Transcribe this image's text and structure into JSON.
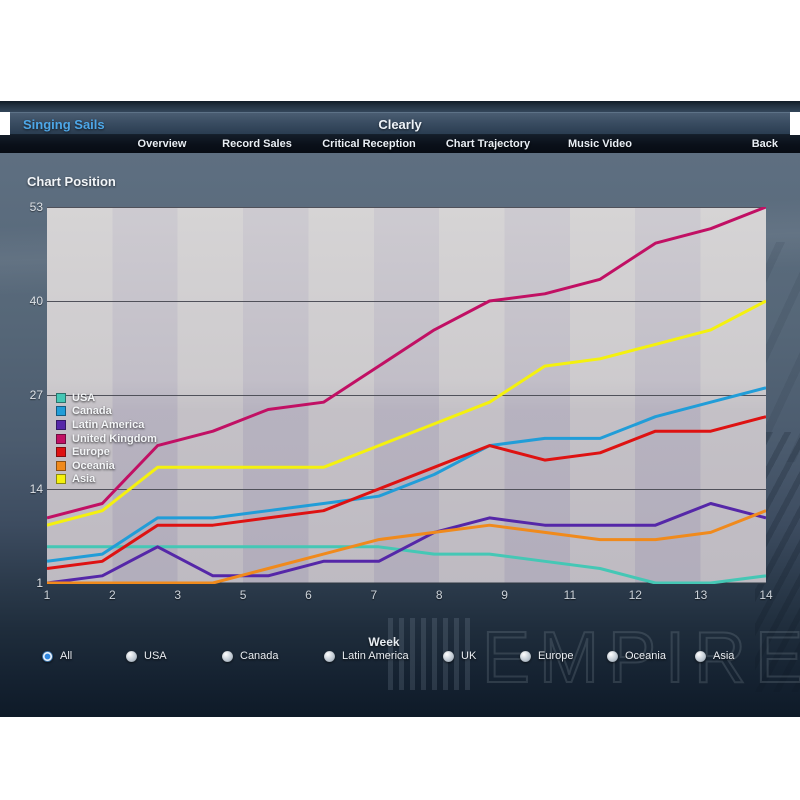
{
  "window": {
    "title_left": "Singing Sails",
    "title_center": "Clearly"
  },
  "nav": {
    "items": [
      "Overview",
      "Record Sales",
      "Critical Reception",
      "Chart Trajectory",
      "Music Video"
    ],
    "back_label": "Back"
  },
  "chart_data": {
    "type": "line",
    "title": "Chart Position",
    "ylabel": "Chart Position",
    "xlabel": "Week",
    "x": [
      1,
      2,
      3,
      4,
      5,
      6,
      7,
      8,
      9,
      10,
      11,
      12,
      13,
      14
    ],
    "x_tick_labels": [
      "1",
      "2",
      "3",
      "5",
      "6",
      "7",
      "8",
      "9",
      "11",
      "12",
      "13",
      "14"
    ],
    "y_ticks": [
      1,
      14,
      27,
      40,
      53
    ],
    "ylim": [
      1,
      53
    ],
    "grid": "horizontal",
    "legend_position": "middle-left",
    "series": [
      {
        "name": "USA",
        "color": "#45c7b5",
        "values": [
          6,
          6,
          6,
          6,
          6,
          6,
          6,
          5,
          5,
          4,
          3,
          1,
          1,
          2
        ]
      },
      {
        "name": "Canada",
        "color": "#219dd8",
        "values": [
          4,
          5,
          10,
          10,
          11,
          12,
          13,
          16,
          20,
          21,
          21,
          24,
          26,
          28
        ]
      },
      {
        "name": "Latin America",
        "color": "#5527a8",
        "values": [
          1,
          2,
          6,
          2,
          2,
          4,
          4,
          8,
          10,
          9,
          9,
          9,
          12,
          10
        ]
      },
      {
        "name": "United Kingdom",
        "color": "#c11064",
        "values": [
          10,
          12,
          20,
          22,
          25,
          26,
          31,
          36,
          40,
          41,
          43,
          48,
          50,
          53
        ]
      },
      {
        "name": "Europe",
        "color": "#de1212",
        "values": [
          3,
          4,
          9,
          9,
          10,
          11,
          14,
          17,
          20,
          18,
          19,
          22,
          22,
          24
        ]
      },
      {
        "name": "Oceania",
        "color": "#f08a1c",
        "values": [
          1,
          1,
          1,
          1,
          3,
          5,
          7,
          8,
          9,
          8,
          7,
          7,
          8,
          11
        ]
      },
      {
        "name": "Asia",
        "color": "#f4f10e",
        "values": [
          9,
          11,
          17,
          17,
          17,
          17,
          20,
          23,
          26,
          31,
          32,
          34,
          36,
          40
        ]
      }
    ]
  },
  "filters": {
    "options": [
      {
        "label": "All",
        "selected": true
      },
      {
        "label": "USA",
        "selected": false
      },
      {
        "label": "Canada",
        "selected": false
      },
      {
        "label": "Latin America",
        "selected": false
      },
      {
        "label": "UK",
        "selected": false
      },
      {
        "label": "Europe",
        "selected": false
      },
      {
        "label": "Oceania",
        "selected": false
      },
      {
        "label": "Asia",
        "selected": false
      }
    ]
  },
  "watermark": {
    "text": "EMPIRE"
  },
  "colors": {
    "accent_link": "#4da7e8",
    "grid_line": "#50515a",
    "band_light": "#c7c4c8",
    "band_dark": "#b9b5c1"
  }
}
